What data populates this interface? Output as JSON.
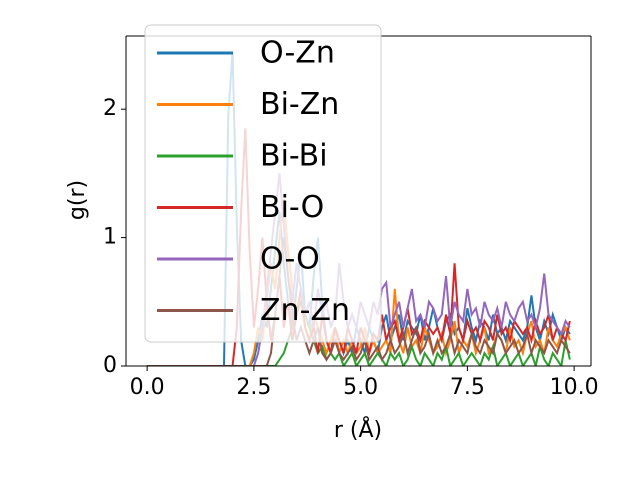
{
  "chart_data": {
    "type": "line",
    "xlabel": "r (Å)",
    "ylabel": "g(r)",
    "xlim": [
      -0.495,
      10.395
    ],
    "ylim": [
      0,
      2.57
    ],
    "xticks": [
      {
        "value": 0,
        "label": "0.0"
      },
      2.5,
      {
        "value": 5,
        "label": "5.0"
      },
      7.5,
      {
        "value": 10,
        "label": "10.0"
      }
    ],
    "yticks": [
      0,
      1,
      2
    ],
    "legend": "upper left",
    "x": [
      0.0,
      0.1,
      0.2,
      0.3,
      0.4,
      0.5,
      0.6,
      0.7,
      0.8,
      0.9,
      1.0,
      1.1,
      1.2,
      1.3,
      1.4,
      1.5,
      1.6,
      1.7,
      1.8,
      1.9,
      2.0,
      2.1,
      2.2,
      2.3,
      2.4,
      2.5,
      2.6,
      2.7,
      2.8,
      2.9,
      3.0,
      3.1,
      3.2,
      3.3,
      3.4,
      3.5,
      3.6,
      3.7,
      3.8,
      3.9,
      4.0,
      4.1,
      4.2,
      4.3,
      4.4,
      4.5,
      4.6,
      4.7,
      4.8,
      4.9,
      5.0,
      5.1,
      5.2,
      5.3,
      5.4,
      5.5,
      5.6,
      5.7,
      5.8,
      5.9,
      6.0,
      6.1,
      6.2,
      6.3,
      6.4,
      6.5,
      6.6,
      6.7,
      6.8,
      6.9,
      7.0,
      7.1,
      7.2,
      7.3,
      7.4,
      7.5,
      7.6,
      7.7,
      7.8,
      7.9,
      8.0,
      8.1,
      8.2,
      8.3,
      8.4,
      8.5,
      8.6,
      8.7,
      8.8,
      8.9,
      9.0,
      9.1,
      9.2,
      9.3,
      9.4,
      9.5,
      9.6,
      9.7,
      9.8,
      9.9
    ],
    "series": [
      {
        "name": "O-Zn",
        "color": "#1f77b4",
        "values": [
          0,
          0,
          0,
          0,
          0,
          0,
          0,
          0,
          0,
          0,
          0,
          0,
          0,
          0,
          0,
          0,
          0,
          0,
          0.0,
          1.95,
          2.45,
          1.1,
          0.2,
          0.0,
          0.0,
          0.05,
          0.2,
          0.4,
          0.3,
          0.6,
          0.9,
          1.2,
          0.8,
          0.5,
          0.3,
          0.6,
          0.9,
          0.4,
          0.3,
          0.7,
          1.0,
          0.5,
          0.2,
          0.1,
          0.3,
          0.2,
          0.1,
          0.2,
          0.1,
          0.3,
          0.2,
          0.1,
          0.3,
          0.2,
          0.1,
          0.3,
          0.4,
          0.2,
          0.3,
          0.4,
          0.2,
          0.35,
          0.3,
          0.25,
          0.4,
          0.2,
          0.3,
          0.45,
          0.3,
          0.2,
          0.35,
          0.4,
          0.25,
          0.3,
          0.2,
          0.45,
          0.3,
          0.2,
          0.35,
          0.3,
          0.2,
          0.4,
          0.25,
          0.3,
          0.2,
          0.35,
          0.3,
          0.25,
          0.2,
          0.3,
          0.55,
          0.3,
          0.2,
          0.35,
          0.25,
          0.4,
          0.3,
          0.2,
          0.3,
          0.25
        ]
      },
      {
        "name": "Bi-Zn",
        "color": "#ff7f0e",
        "values": [
          0,
          0,
          0,
          0,
          0,
          0,
          0,
          0,
          0,
          0,
          0,
          0,
          0,
          0,
          0,
          0,
          0,
          0,
          0,
          0,
          0,
          0,
          0,
          0,
          0,
          0.1,
          0.3,
          0.2,
          0.5,
          0.8,
          0.6,
          1.0,
          1.3,
          0.9,
          0.6,
          0.4,
          0.5,
          0.3,
          0.2,
          0.4,
          0.3,
          0.2,
          0.1,
          0.2,
          0.3,
          0.1,
          0.2,
          0.1,
          0.2,
          0.1,
          0.15,
          0.3,
          0.1,
          0.2,
          0.1,
          0.15,
          0.2,
          0.1,
          0.6,
          0.2,
          0.1,
          0.3,
          0.15,
          0.2,
          0.1,
          0.3,
          0.2,
          0.1,
          0.15,
          0.25,
          0.1,
          0.2,
          0.35,
          0.1,
          0.2,
          0.15,
          0.25,
          0.1,
          0.2,
          0.3,
          0.1,
          0.15,
          0.25,
          0.2,
          0.1,
          0.3,
          0.15,
          0.2,
          0.1,
          0.25,
          0.35,
          0.15,
          0.2,
          0.1,
          0.3,
          0.2,
          0.15,
          0.25,
          0.3,
          0.2
        ]
      },
      {
        "name": "Bi-Bi",
        "color": "#2ca02c",
        "values": [
          0,
          0,
          0,
          0,
          0,
          0,
          0,
          0,
          0,
          0,
          0,
          0,
          0,
          0,
          0,
          0,
          0,
          0,
          0,
          0,
          0,
          0,
          0,
          0,
          0,
          0,
          0,
          0,
          0,
          0,
          0,
          0.05,
          0.1,
          0.2,
          0.3,
          0.4,
          0.5,
          0.4,
          0.3,
          0.2,
          0.1,
          0.15,
          0.05,
          0.1,
          0.05,
          0.1,
          0.0,
          0.05,
          0.1,
          0.0,
          0.05,
          0.1,
          0.0,
          0.05,
          0.1,
          0.05,
          0.0,
          0.1,
          0.05,
          0.1,
          0.0,
          0.05,
          0.15,
          0.05,
          0.0,
          0.1,
          0.05,
          0.0,
          0.1,
          0.05,
          0.15,
          0.0,
          0.05,
          0.1,
          0.0,
          0.05,
          0.1,
          0.05,
          0.0,
          0.1,
          0.05,
          0.15,
          0.0,
          0.05,
          0.1,
          0.0,
          0.05,
          0.1,
          0.0,
          0.05,
          0.1,
          0.0,
          0.15,
          0.05,
          0.0,
          0.1,
          0.05,
          0.0,
          0.2,
          0.05
        ]
      },
      {
        "name": "Bi-O",
        "color": "#d62728",
        "values": [
          0,
          0,
          0,
          0,
          0,
          0,
          0,
          0,
          0,
          0,
          0,
          0,
          0,
          0,
          0,
          0,
          0,
          0,
          0,
          0,
          0,
          0.3,
          1.2,
          1.85,
          0.9,
          0.3,
          0.6,
          1.0,
          0.5,
          0.2,
          0.4,
          0.7,
          0.3,
          0.5,
          0.2,
          0.4,
          0.6,
          0.3,
          0.2,
          0.3,
          0.1,
          0.4,
          0.2,
          0.1,
          0.3,
          0.2,
          0.1,
          0.3,
          0.2,
          0.1,
          0.3,
          0.2,
          0.1,
          0.25,
          0.2,
          0.4,
          0.2,
          0.3,
          0.35,
          0.2,
          0.3,
          0.45,
          0.25,
          0.3,
          0.2,
          0.35,
          0.3,
          0.25,
          0.3,
          0.2,
          0.4,
          0.25,
          0.8,
          0.3,
          0.2,
          0.35,
          0.25,
          0.3,
          0.2,
          0.35,
          0.3,
          0.2,
          0.4,
          0.25,
          0.3,
          0.2,
          0.35,
          0.3,
          0.25,
          0.3,
          0.2,
          0.35,
          0.25,
          0.3,
          0.4,
          0.2,
          0.3,
          0.25,
          0.2,
          0.35
        ]
      },
      {
        "name": "O-O",
        "color": "#9467bd",
        "values": [
          0,
          0,
          0,
          0,
          0,
          0,
          0,
          0,
          0,
          0,
          0,
          0,
          0,
          0,
          0,
          0,
          0,
          0,
          0,
          0,
          0,
          0,
          0,
          0,
          0,
          0,
          0.1,
          0.3,
          0.6,
          0.9,
          1.2,
          1.5,
          1.1,
          0.7,
          0.5,
          0.8,
          0.6,
          0.4,
          0.5,
          0.3,
          0.6,
          0.4,
          0.5,
          0.3,
          0.4,
          0.8,
          0.5,
          0.3,
          0.4,
          0.3,
          0.5,
          0.4,
          0.3,
          0.5,
          0.4,
          0.6,
          0.65,
          0.3,
          0.4,
          0.5,
          0.3,
          0.45,
          0.6,
          0.35,
          0.4,
          0.3,
          0.5,
          0.45,
          0.35,
          0.4,
          0.7,
          0.3,
          0.5,
          0.4,
          0.35,
          0.6,
          0.4,
          0.45,
          0.3,
          0.5,
          0.4,
          0.35,
          0.45,
          0.3,
          0.5,
          0.4,
          0.35,
          0.45,
          0.5,
          0.35,
          0.4,
          0.3,
          0.45,
          0.72,
          0.4,
          0.35,
          0.3,
          0.25,
          0.35,
          0.3
        ]
      },
      {
        "name": "Zn-Zn",
        "color": "#8c564b",
        "values": [
          0,
          0,
          0,
          0,
          0,
          0,
          0,
          0,
          0,
          0,
          0,
          0,
          0,
          0,
          0,
          0,
          0,
          0,
          0,
          0,
          0,
          0,
          0,
          0,
          0,
          0,
          0,
          0,
          0,
          0.1,
          0.4,
          0.7,
          1.0,
          0.7,
          0.4,
          0.2,
          0.3,
          0.2,
          0.1,
          0.2,
          0.3,
          0.1,
          0.05,
          0.1,
          0.2,
          0.1,
          0.05,
          0.1,
          0.15,
          0.05,
          0.1,
          0.2,
          0.05,
          0.1,
          0.15,
          0.05,
          0.1,
          0.2,
          0.1,
          0.15,
          0.25,
          0.1,
          0.2,
          0.3,
          0.1,
          0.15,
          0.25,
          0.1,
          0.2,
          0.1,
          0.15,
          0.25,
          0.1,
          0.2,
          0.15,
          0.1,
          0.25,
          0.15,
          0.1,
          0.2,
          0.15,
          0.1,
          0.25,
          0.2,
          0.1,
          0.15,
          0.2,
          0.1,
          0.15,
          0.25,
          0.1,
          0.2,
          0.15,
          0.1,
          0.2,
          0.15,
          0.1,
          0.2,
          0.15,
          0.1
        ]
      }
    ]
  }
}
